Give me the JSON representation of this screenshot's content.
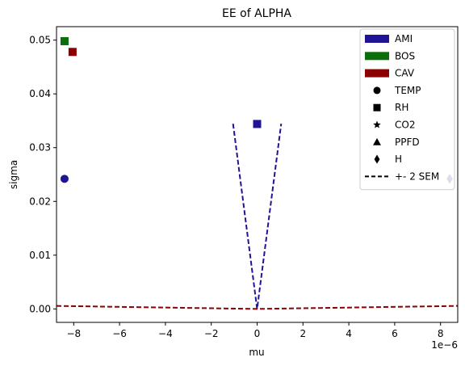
{
  "chart_data": {
    "type": "scatter",
    "title": "EE of ALPHA",
    "xlabel": "mu",
    "ylabel": "sigma",
    "x_offset_label": "1e−6",
    "x_scale": 1e-06,
    "xlim": [
      -8.75,
      8.75
    ],
    "ylim": [
      -0.0025,
      0.0525
    ],
    "x_ticks": [
      -8,
      -6,
      -4,
      -2,
      0,
      2,
      4,
      6,
      8
    ],
    "x_tick_labels": [
      "−8",
      "−6",
      "−4",
      "−2",
      "0",
      "2",
      "4",
      "6",
      "8"
    ],
    "y_ticks": [
      0.0,
      0.01,
      0.02,
      0.03,
      0.04,
      0.05
    ],
    "y_tick_labels": [
      "0.00",
      "0.01",
      "0.02",
      "0.03",
      "0.04",
      "0.05"
    ],
    "grid": false,
    "legend_position": "top-right",
    "series": [
      {
        "name": "AMI",
        "color": "#1f1396",
        "points": [
          {
            "x": -8.4,
            "y": 0.0242,
            "marker": "circle",
            "variable": "TEMP"
          },
          {
            "x": 0.0,
            "y": 0.0344,
            "marker": "square",
            "variable": "RH"
          },
          {
            "x": 8.4,
            "y": 0.0242,
            "marker": "diamond",
            "variable": "H"
          }
        ],
        "sem_band": {
          "x_range": [
            -1.05,
            1.05
          ],
          "slope": 0.0328
        }
      },
      {
        "name": "BOS",
        "color": "#0a6e0a",
        "points": [
          {
            "x": -8.4,
            "y": 0.0498,
            "marker": "square",
            "variable": "RH"
          }
        ]
      },
      {
        "name": "CAV",
        "color": "#8b0000",
        "points": [
          {
            "x": -8.05,
            "y": 0.0478,
            "marker": "square",
            "variable": "RH"
          }
        ],
        "sem_band": {
          "x_range": [
            -8.75,
            8.75
          ],
          "slope": 6.4e-05
        }
      }
    ],
    "legend": {
      "colors": [
        {
          "label": "AMI",
          "color": "#1f1396"
        },
        {
          "label": "BOS",
          "color": "#0a6e0a"
        },
        {
          "label": "CAV",
          "color": "#8b0000"
        }
      ],
      "markers": [
        {
          "label": "TEMP",
          "marker": "circle"
        },
        {
          "label": "RH",
          "marker": "square"
        },
        {
          "label": "CO2",
          "marker": "star"
        },
        {
          "label": "PPFD",
          "marker": "triangle"
        },
        {
          "label": "H",
          "marker": "diamond"
        }
      ],
      "line": {
        "label": "+- 2 SEM",
        "style": "dashed"
      }
    }
  }
}
